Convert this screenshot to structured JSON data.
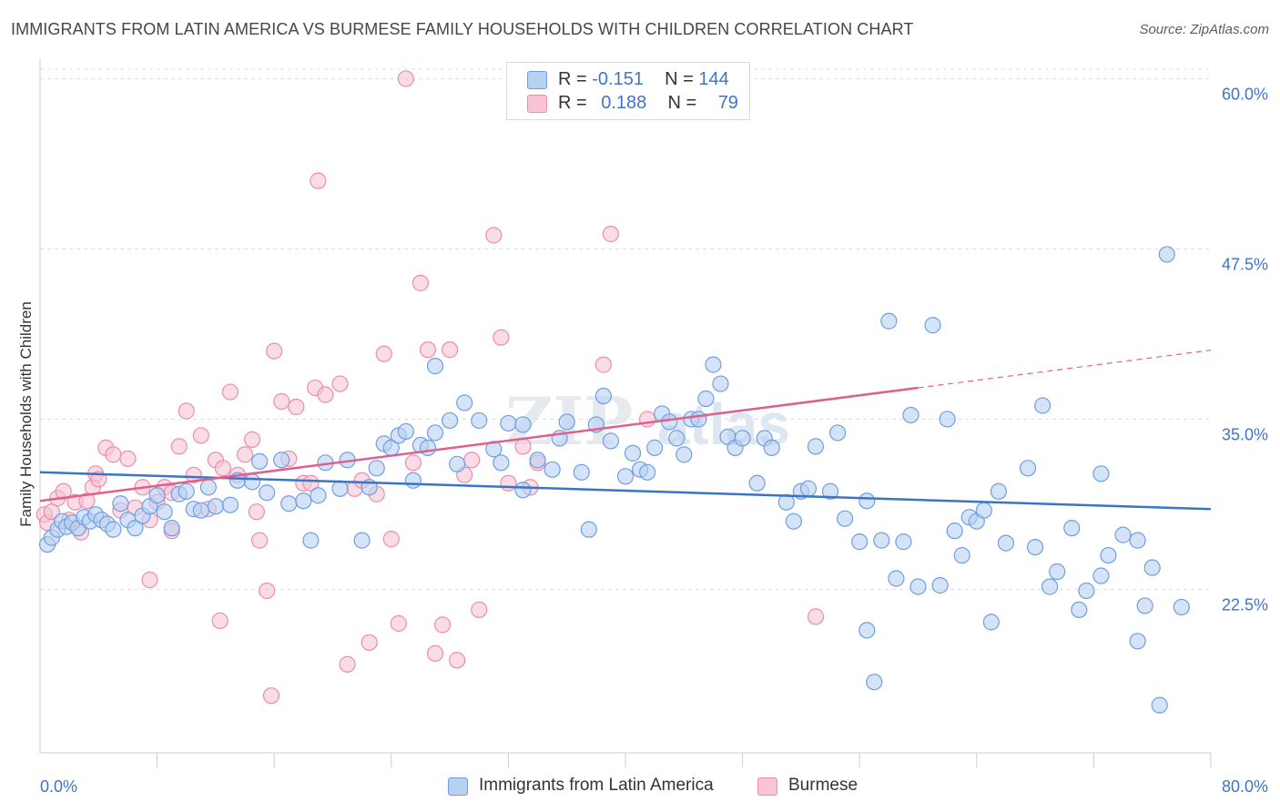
{
  "header": {
    "title": "IMMIGRANTS FROM LATIN AMERICA VS BURMESE FAMILY HOUSEHOLDS WITH CHILDREN CORRELATION CHART",
    "source": "Source: ZipAtlas.com"
  },
  "legend": {
    "series1": {
      "r_label": "R =",
      "r_value": "-0.151",
      "n_label": "N =",
      "n_value": "144"
    },
    "series2": {
      "r_label": "R =",
      "r_value": "0.188",
      "n_label": "N =",
      "n_value": "79"
    }
  },
  "colors": {
    "blue_fill": "#b7d1f3",
    "blue_stroke": "#6f9fe0",
    "blue_line": "#3a74c8",
    "pink_fill": "#f7c5d6",
    "pink_stroke": "#eb8eab",
    "pink_line": "#e0608b",
    "grid": "#dcdfe4",
    "axis_text": "#3f74c9"
  },
  "chart_data": {
    "type": "scatter",
    "title": "IMMIGRANTS FROM LATIN AMERICA VS BURMESE FAMILY HOUSEHOLDS WITH CHILDREN CORRELATION CHART",
    "xlabel": "",
    "ylabel": "Family Households with Children",
    "xlim": [
      0,
      80
    ],
    "ylim": [
      10.5,
      61.5
    ],
    "x_tick_labels": [
      "0.0%",
      "80.0%"
    ],
    "y_ticks": [
      22.5,
      35.0,
      47.5,
      60.0
    ],
    "y_tick_labels": [
      "22.5%",
      "35.0%",
      "47.5%",
      "60.0%"
    ],
    "grid": true,
    "legend_position": "bottom",
    "series": [
      {
        "name": "Immigrants from Latin America",
        "color": "#6f9fe0",
        "trend": {
          "x": [
            0,
            80
          ],
          "y": [
            31.1,
            28.4
          ]
        },
        "points": [
          [
            0.5,
            25.8
          ],
          [
            0.8,
            26.3
          ],
          [
            1.2,
            26.9
          ],
          [
            1.5,
            27.5
          ],
          [
            1.8,
            27.1
          ],
          [
            2.2,
            27.4
          ],
          [
            2.6,
            27.0
          ],
          [
            3.0,
            27.8
          ],
          [
            3.4,
            27.5
          ],
          [
            3.8,
            28.0
          ],
          [
            4.2,
            27.6
          ],
          [
            4.6,
            27.3
          ],
          [
            5.0,
            26.9
          ],
          [
            5.5,
            28.8
          ],
          [
            6.0,
            27.6
          ],
          [
            6.5,
            27.0
          ],
          [
            7.0,
            27.9
          ],
          [
            7.5,
            28.6
          ],
          [
            8.0,
            29.4
          ],
          [
            8.5,
            28.2
          ],
          [
            9.0,
            27.0
          ],
          [
            9.5,
            29.5
          ],
          [
            10.0,
            29.7
          ],
          [
            10.5,
            28.4
          ],
          [
            11.0,
            28.3
          ],
          [
            11.5,
            30.0
          ],
          [
            12.0,
            28.6
          ],
          [
            13.0,
            28.7
          ],
          [
            13.5,
            30.5
          ],
          [
            14.5,
            30.4
          ],
          [
            15.0,
            31.9
          ],
          [
            15.5,
            29.6
          ],
          [
            16.5,
            32.0
          ],
          [
            17.0,
            28.8
          ],
          [
            18.0,
            29.0
          ],
          [
            18.5,
            26.1
          ],
          [
            19.0,
            29.4
          ],
          [
            19.5,
            31.8
          ],
          [
            20.5,
            29.9
          ],
          [
            21.0,
            32.0
          ],
          [
            22.0,
            26.1
          ],
          [
            22.5,
            30.0
          ],
          [
            23.0,
            31.4
          ],
          [
            23.5,
            33.2
          ],
          [
            24.0,
            32.9
          ],
          [
            24.5,
            33.8
          ],
          [
            25.0,
            34.1
          ],
          [
            25.5,
            30.5
          ],
          [
            26.0,
            33.1
          ],
          [
            26.5,
            32.9
          ],
          [
            27.0,
            34.0
          ],
          [
            27.0,
            38.9
          ],
          [
            28.0,
            34.9
          ],
          [
            28.5,
            31.7
          ],
          [
            29.0,
            36.2
          ],
          [
            30.0,
            34.9
          ],
          [
            31.0,
            32.8
          ],
          [
            31.5,
            31.8
          ],
          [
            32.0,
            34.7
          ],
          [
            33.0,
            29.8
          ],
          [
            33.0,
            34.6
          ],
          [
            34.0,
            32.0
          ],
          [
            35.0,
            31.3
          ],
          [
            35.5,
            33.6
          ],
          [
            36.0,
            34.8
          ],
          [
            37.0,
            31.1
          ],
          [
            37.5,
            26.9
          ],
          [
            38.0,
            34.6
          ],
          [
            38.5,
            36.7
          ],
          [
            39.0,
            33.4
          ],
          [
            40.0,
            30.8
          ],
          [
            40.5,
            32.5
          ],
          [
            41.0,
            31.3
          ],
          [
            41.5,
            31.1
          ],
          [
            42.0,
            32.9
          ],
          [
            42.5,
            35.4
          ],
          [
            43.0,
            34.8
          ],
          [
            43.5,
            33.6
          ],
          [
            44.0,
            32.4
          ],
          [
            44.5,
            35.0
          ],
          [
            45.0,
            35.0
          ],
          [
            45.5,
            36.5
          ],
          [
            46.0,
            39.0
          ],
          [
            46.5,
            37.6
          ],
          [
            47.0,
            33.7
          ],
          [
            47.5,
            32.9
          ],
          [
            48.0,
            33.6
          ],
          [
            49.0,
            30.3
          ],
          [
            49.5,
            33.6
          ],
          [
            50.0,
            32.9
          ],
          [
            51.0,
            28.9
          ],
          [
            51.5,
            27.5
          ],
          [
            52.0,
            29.7
          ],
          [
            52.5,
            29.9
          ],
          [
            53.0,
            33.0
          ],
          [
            54.0,
            29.7
          ],
          [
            54.5,
            34.0
          ],
          [
            55.0,
            27.7
          ],
          [
            56.0,
            26.0
          ],
          [
            56.5,
            29.0
          ],
          [
            56.5,
            19.5
          ],
          [
            57.0,
            15.7
          ],
          [
            57.5,
            26.1
          ],
          [
            58.0,
            42.2
          ],
          [
            58.5,
            23.3
          ],
          [
            59.0,
            26.0
          ],
          [
            59.5,
            35.3
          ],
          [
            60.0,
            22.7
          ],
          [
            61.0,
            41.9
          ],
          [
            61.5,
            22.8
          ],
          [
            62.0,
            35.0
          ],
          [
            62.5,
            26.8
          ],
          [
            63.0,
            25.0
          ],
          [
            63.5,
            27.8
          ],
          [
            64.0,
            27.5
          ],
          [
            64.5,
            28.3
          ],
          [
            65.0,
            20.1
          ],
          [
            65.5,
            29.7
          ],
          [
            66.0,
            25.9
          ],
          [
            67.5,
            31.4
          ],
          [
            68.0,
            25.6
          ],
          [
            68.5,
            36.0
          ],
          [
            69.0,
            22.7
          ],
          [
            69.5,
            23.8
          ],
          [
            70.5,
            27.0
          ],
          [
            71.0,
            21.0
          ],
          [
            71.5,
            22.4
          ],
          [
            72.5,
            23.5
          ],
          [
            72.5,
            31.0
          ],
          [
            73.0,
            25.0
          ],
          [
            74.0,
            26.5
          ],
          [
            75.0,
            18.7
          ],
          [
            75.0,
            26.1
          ],
          [
            75.5,
            21.3
          ],
          [
            76.0,
            24.1
          ],
          [
            76.5,
            14.0
          ],
          [
            77.0,
            47.1
          ],
          [
            78.0,
            21.2
          ]
        ]
      },
      {
        "name": "Burmese",
        "color": "#eb8eab",
        "trend": {
          "x": [
            0,
            60
          ],
          "y": [
            29.0,
            37.3
          ]
        },
        "points": [
          [
            0.3,
            28.0
          ],
          [
            0.5,
            27.4
          ],
          [
            0.8,
            28.2
          ],
          [
            1.2,
            29.2
          ],
          [
            1.6,
            29.7
          ],
          [
            2.0,
            27.6
          ],
          [
            2.4,
            28.9
          ],
          [
            2.8,
            26.7
          ],
          [
            3.2,
            29.0
          ],
          [
            3.6,
            30.0
          ],
          [
            3.8,
            31.0
          ],
          [
            4.0,
            30.6
          ],
          [
            4.5,
            32.9
          ],
          [
            5.0,
            32.4
          ],
          [
            5.5,
            28.3
          ],
          [
            6.0,
            32.1
          ],
          [
            6.5,
            28.5
          ],
          [
            7.0,
            30.0
          ],
          [
            7.5,
            27.6
          ],
          [
            7.5,
            23.2
          ],
          [
            8.0,
            28.9
          ],
          [
            8.5,
            30.0
          ],
          [
            9.0,
            26.8
          ],
          [
            9.0,
            29.6
          ],
          [
            9.5,
            33.0
          ],
          [
            10.0,
            35.6
          ],
          [
            10.5,
            30.9
          ],
          [
            11.0,
            33.8
          ],
          [
            11.5,
            28.4
          ],
          [
            12.0,
            32.0
          ],
          [
            12.3,
            20.2
          ],
          [
            12.5,
            31.4
          ],
          [
            13.0,
            37.0
          ],
          [
            13.5,
            30.9
          ],
          [
            14.0,
            32.4
          ],
          [
            14.5,
            33.5
          ],
          [
            14.8,
            28.2
          ],
          [
            15.0,
            26.1
          ],
          [
            15.5,
            22.4
          ],
          [
            15.8,
            14.7
          ],
          [
            16.0,
            40.0
          ],
          [
            16.5,
            36.3
          ],
          [
            17.0,
            32.1
          ],
          [
            17.5,
            35.9
          ],
          [
            18.0,
            30.3
          ],
          [
            18.5,
            30.3
          ],
          [
            18.8,
            37.3
          ],
          [
            19.0,
            52.5
          ],
          [
            19.5,
            36.8
          ],
          [
            20.5,
            37.6
          ],
          [
            21.0,
            17.0
          ],
          [
            21.5,
            29.9
          ],
          [
            22.0,
            30.5
          ],
          [
            22.5,
            18.6
          ],
          [
            23.0,
            29.5
          ],
          [
            23.5,
            39.8
          ],
          [
            24.0,
            26.2
          ],
          [
            24.5,
            20.0
          ],
          [
            25.0,
            60.0
          ],
          [
            25.5,
            31.8
          ],
          [
            26.0,
            45.0
          ],
          [
            26.5,
            40.1
          ],
          [
            27.0,
            17.8
          ],
          [
            27.5,
            19.9
          ],
          [
            28.0,
            40.1
          ],
          [
            28.5,
            17.3
          ],
          [
            29.0,
            30.9
          ],
          [
            29.5,
            32.0
          ],
          [
            30.0,
            21.0
          ],
          [
            31.0,
            48.5
          ],
          [
            31.5,
            41.0
          ],
          [
            32.0,
            30.3
          ],
          [
            33.0,
            33.0
          ],
          [
            33.5,
            30.0
          ],
          [
            34.0,
            31.8
          ],
          [
            38.5,
            39.0
          ],
          [
            39.0,
            48.6
          ],
          [
            41.5,
            35.0
          ],
          [
            53.0,
            20.5
          ]
        ]
      }
    ]
  },
  "bottom_legend": {
    "item1": "Immigrants from Latin America",
    "item2": "Burmese"
  },
  "watermark": {
    "text1": "ZIP",
    "text2": "atlas"
  }
}
